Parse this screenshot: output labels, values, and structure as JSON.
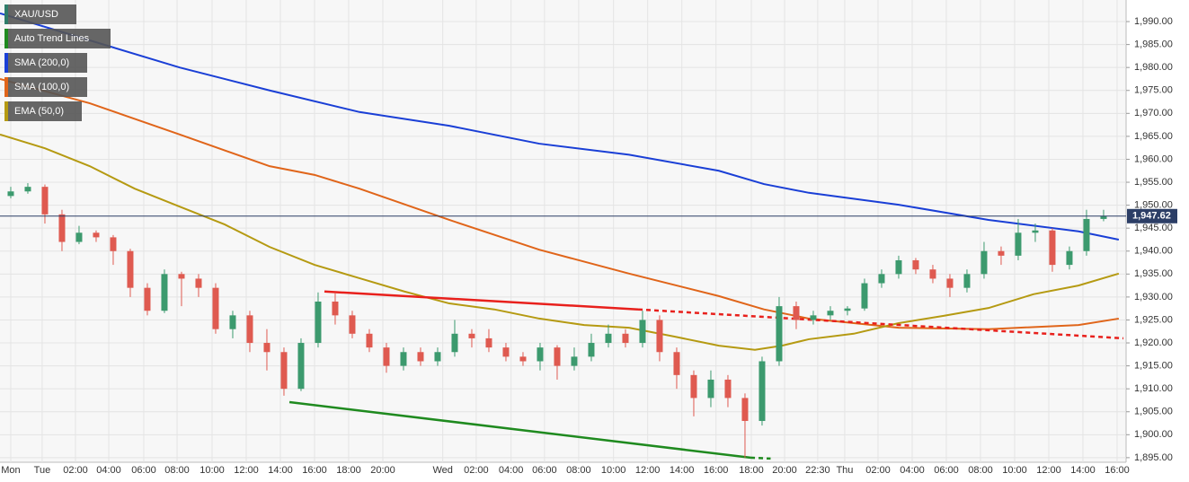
{
  "chart_data": {
    "type": "candlestick",
    "symbol": "XAU/USD",
    "symbol_color": "#2e7d6a",
    "up_color": "#3c9a6e",
    "down_color": "#df5a50",
    "open": [
      1952,
      1953,
      1954,
      1948,
      1942,
      1944,
      1943,
      1940,
      1932,
      1927,
      1935,
      1934,
      1932,
      1923,
      1926,
      1920,
      1918,
      1910,
      1920,
      1929,
      1926,
      1922,
      1919,
      1915,
      1918,
      1916,
      1918,
      1922,
      1921,
      1919,
      1917,
      1916,
      1919,
      1915,
      1917,
      1920,
      1922,
      1920,
      1925,
      1918,
      1913,
      1908,
      1912,
      1908,
      1903,
      1916,
      1928,
      1925,
      1926,
      1927,
      1927.5,
      1933,
      1935,
      1938,
      1936,
      1934,
      1932,
      1935,
      1940,
      1939,
      1944,
      1944.5,
      1937,
      1940,
      1947
    ],
    "high": [
      1954,
      1954.8,
      1954.5,
      1949,
      1945.5,
      1944.5,
      1943.5,
      1940.5,
      1933,
      1936,
      1935.5,
      1935,
      1933,
      1927,
      1927,
      1923,
      1919,
      1921,
      1931,
      1931,
      1927,
      1923,
      1920,
      1919,
      1919,
      1919,
      1925,
      1923,
      1923,
      1920,
      1918,
      1920,
      1919.5,
      1919,
      1922,
      1924,
      1923,
      1927,
      1926,
      1919,
      1914,
      1914,
      1913,
      1909,
      1917,
      1930,
      1929,
      1927,
      1928,
      1928,
      1934,
      1936,
      1939,
      1938.5,
      1937,
      1935,
      1936,
      1942,
      1941,
      1947,
      1946,
      1945,
      1941,
      1949,
      1949
    ],
    "low": [
      1951.5,
      1952.5,
      1946,
      1940,
      1941.5,
      1942,
      1937,
      1930,
      1926,
      1926.5,
      1928,
      1930,
      1922,
      1921,
      1918,
      1914,
      1908.5,
      1909.5,
      1919,
      1924,
      1921,
      1918,
      1913.5,
      1914,
      1915,
      1915,
      1917,
      1919,
      1918,
      1916,
      1915,
      1914,
      1912,
      1914,
      1916,
      1919,
      1919,
      1919,
      1916,
      1910,
      1904,
      1906,
      1906,
      1895,
      1902,
      1915,
      1923,
      1924,
      1925,
      1926,
      1927,
      1932,
      1934,
      1935,
      1933,
      1930,
      1931,
      1934,
      1937,
      1938,
      1942,
      1935.5,
      1936,
      1939,
      1946.5
    ],
    "close": [
      1953,
      1954,
      1948,
      1942,
      1944,
      1943,
      1940,
      1932,
      1927,
      1935,
      1934,
      1932,
      1923,
      1926,
      1920,
      1918,
      1910,
      1920,
      1929,
      1926,
      1922,
      1919,
      1915,
      1918,
      1916,
      1918,
      1922,
      1921,
      1919,
      1917,
      1916,
      1919,
      1915,
      1917,
      1920,
      1922,
      1920,
      1925,
      1918,
      1913,
      1908,
      1912,
      1908,
      1903,
      1916,
      1928,
      1925,
      1926,
      1927,
      1927.5,
      1933,
      1935,
      1938,
      1936,
      1934,
      1932,
      1935,
      1940,
      1939,
      1944,
      1944.5,
      1937,
      1940,
      1947,
      1947.62
    ],
    "last_price": {
      "value": 1947.62,
      "label": "1,947.62"
    },
    "last_price_color": "#2c3e66",
    "xlim": [
      -0.63,
      65.16
    ],
    "ylim": [
      1894.0,
      1994.7
    ],
    "grid": true,
    "xticks": [
      {
        "value": 0,
        "label": "Mon"
      },
      {
        "value": 1.84,
        "label": "Tue"
      },
      {
        "value": 3.79,
        "label": "02:00"
      },
      {
        "value": 5.74,
        "label": "04:00"
      },
      {
        "value": 7.79,
        "label": "06:00"
      },
      {
        "value": 9.74,
        "label": "08:00"
      },
      {
        "value": 11.79,
        "label": "10:00"
      },
      {
        "value": 13.79,
        "label": "12:00"
      },
      {
        "value": 15.79,
        "label": "14:00"
      },
      {
        "value": 17.79,
        "label": "16:00"
      },
      {
        "value": 19.79,
        "label": "18:00"
      },
      {
        "value": 21.79,
        "label": "20:00"
      },
      {
        "value": 25.3,
        "label": "Wed"
      },
      {
        "value": 27.26,
        "label": "02:00"
      },
      {
        "value": 29.3,
        "label": "04:00"
      },
      {
        "value": 31.26,
        "label": "06:00"
      },
      {
        "value": 33.26,
        "label": "08:00"
      },
      {
        "value": 35.3,
        "label": "10:00"
      },
      {
        "value": 37.3,
        "label": "12:00"
      },
      {
        "value": 39.3,
        "label": "14:00"
      },
      {
        "value": 41.3,
        "label": "16:00"
      },
      {
        "value": 43.37,
        "label": "18:00"
      },
      {
        "value": 45.32,
        "label": "20:00"
      },
      {
        "value": 47.26,
        "label": "22:30"
      },
      {
        "value": 48.84,
        "label": "Thu"
      },
      {
        "value": 50.79,
        "label": "02:00"
      },
      {
        "value": 52.79,
        "label": "04:00"
      },
      {
        "value": 54.79,
        "label": "06:00"
      },
      {
        "value": 56.79,
        "label": "08:00"
      },
      {
        "value": 58.79,
        "label": "10:00"
      },
      {
        "value": 60.79,
        "label": "12:00"
      },
      {
        "value": 62.79,
        "label": "14:00"
      },
      {
        "value": 64.79,
        "label": "16:00"
      }
    ],
    "yticks": [
      {
        "value": 1895,
        "label": "1,895.00"
      },
      {
        "value": 1900,
        "label": "1,900.00"
      },
      {
        "value": 1905,
        "label": "1,905.00"
      },
      {
        "value": 1910,
        "label": "1,910.00"
      },
      {
        "value": 1915,
        "label": "1,915.00"
      },
      {
        "value": 1920,
        "label": "1,920.00"
      },
      {
        "value": 1925,
        "label": "1,925.00"
      },
      {
        "value": 1930,
        "label": "1,930.00"
      },
      {
        "value": 1935,
        "label": "1,935.00"
      },
      {
        "value": 1940,
        "label": "1,940.00"
      },
      {
        "value": 1945,
        "label": "1,945.00"
      },
      {
        "value": 1950,
        "label": "1,950.00"
      },
      {
        "value": 1955,
        "label": "1,955.00"
      },
      {
        "value": 1960,
        "label": "1,960.00"
      },
      {
        "value": 1965,
        "label": "1,965.00"
      },
      {
        "value": 1970,
        "label": "1,970.00"
      },
      {
        "value": 1975,
        "label": "1,975.00"
      },
      {
        "value": 1980,
        "label": "1,980.00"
      },
      {
        "value": 1985,
        "label": "1,985.00"
      },
      {
        "value": 1990,
        "label": "1,990.00"
      }
    ],
    "trend_lines_label": "Auto Trend Lines",
    "trend_lines_color": "#1f8a1f",
    "trend_lines": [
      {
        "color": "#e8201c",
        "style": "solid",
        "x": [
          18.37,
          36.74
        ],
        "values": [
          1931.2,
          1927.3
        ]
      },
      {
        "color": "#e8201c",
        "style": "dashed",
        "x": [
          36.74,
          65.16
        ],
        "values": [
          1927.3,
          1921.0
        ]
      },
      {
        "color": "#1f8a1f",
        "style": "solid",
        "x": [
          16.32,
          43.32
        ],
        "values": [
          1907.1,
          1895.0
        ]
      },
      {
        "color": "#1f8a1f",
        "style": "dashed",
        "x": [
          43.32,
          44.5
        ],
        "values": [
          1895.0,
          1894.8
        ]
      }
    ],
    "series": [
      {
        "name": "SMA (200,0)",
        "color": "#1a3fd6",
        "x": [
          -0.63,
          4.63,
          9.89,
          15.16,
          20.42,
          25.68,
          30.95,
          36.21,
          41.47,
          44.11,
          46.74,
          52,
          57.26,
          62.53,
          64.89
        ],
        "values": [
          1991.8,
          1985.9,
          1980,
          1975,
          1970.3,
          1967.3,
          1963.4,
          1961,
          1957.5,
          1954.6,
          1952.7,
          1950.1,
          1946.8,
          1944.3,
          1942.5
        ]
      },
      {
        "name": "SMA (100,0)",
        "color": "#e0651a",
        "x": [
          -0.63,
          4.63,
          9.89,
          15.16,
          17.79,
          20.42,
          25.68,
          30.95,
          36.21,
          41.47,
          44.11,
          46.74,
          52,
          57.26,
          62.53,
          64.89
        ],
        "values": [
          1977.5,
          1972.2,
          1965.4,
          1958.5,
          1956.6,
          1953.6,
          1946.8,
          1940.3,
          1935.1,
          1930.2,
          1927.3,
          1925.3,
          1923.3,
          1923,
          1923.9,
          1925.3
        ]
      },
      {
        "name": "EMA (50,0)",
        "color": "#b59a12",
        "x": [
          -0.63,
          2,
          4.63,
          7.26,
          9.89,
          12.53,
          15.16,
          17.79,
          20.42,
          23.05,
          25.68,
          28.32,
          30.95,
          33.58,
          36.21,
          38.84,
          41.47,
          43.58,
          45.16,
          46.74,
          49.37,
          52,
          54.63,
          57.26,
          59.89,
          62.53,
          64.89
        ],
        "values": [
          1965.4,
          1962.4,
          1958.5,
          1953.6,
          1949.7,
          1945.8,
          1940.9,
          1937,
          1934.1,
          1931.2,
          1928.6,
          1927.3,
          1925.3,
          1923.9,
          1923.3,
          1921.4,
          1919.4,
          1918.5,
          1919.4,
          1920.8,
          1922,
          1924.3,
          1925.9,
          1927.6,
          1930.6,
          1932.5,
          1935.1
        ]
      }
    ]
  }
}
